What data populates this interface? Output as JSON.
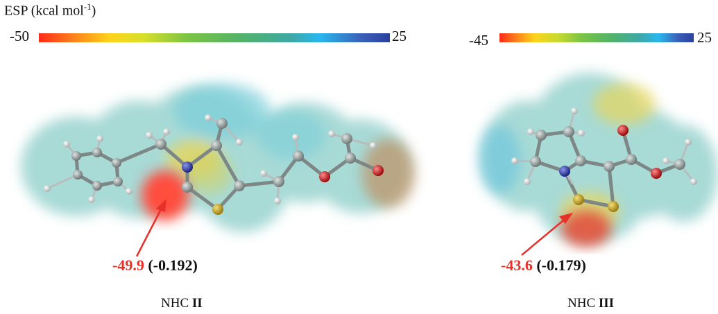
{
  "legend": {
    "title": "ESP (kcal mol",
    "title_sup": "-1",
    "title_close": ")"
  },
  "scale_left": {
    "min_label": "-50",
    "max_label": "25"
  },
  "scale_right": {
    "min_label": "-45",
    "max_label": "25"
  },
  "molecule_left": {
    "esp_value": "-49.9",
    "charge": "(-0.192)",
    "name_prefix": "NHC",
    "name_bold": "II"
  },
  "molecule_right": {
    "esp_value": "-43.6",
    "charge": "(-0.179)",
    "name_prefix": "NHC",
    "name_bold": "III"
  },
  "colors": {
    "accent_red": "#e8302a",
    "carbon": "#8a9392",
    "nitrogen": "#2a3a9e",
    "sulfur": "#c9a62a",
    "oxygen": "#d41a1a",
    "hydrogen": "#d8dcdc"
  }
}
